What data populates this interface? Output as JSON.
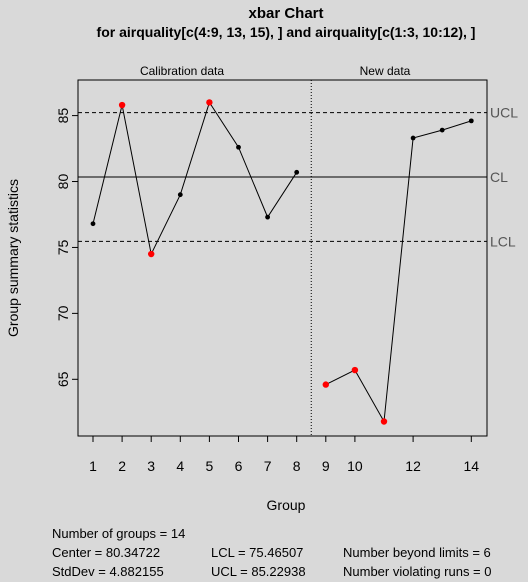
{
  "chart_data": {
    "type": "line",
    "title": "xbar Chart",
    "subtitle": "for airquality[c(4:9, 13, 15), ] and airquality[c(1:3, 10:12), ]",
    "xlabel": "Group",
    "ylabel": "Group summary statistics",
    "ylim": [
      60.7,
      87.7
    ],
    "yticks": [
      65,
      70,
      75,
      80,
      85
    ],
    "xticks": [
      1,
      2,
      3,
      4,
      5,
      6,
      7,
      8,
      9,
      10,
      12,
      14
    ],
    "xticklabels": [
      "1",
      "2",
      "3",
      "4",
      "5",
      "6",
      "7",
      "8",
      "9",
      "10",
      "12",
      "14"
    ],
    "section_labels": [
      "Calibration data",
      "New data"
    ],
    "calibration_groups": 8,
    "series": [
      {
        "x": [
          1,
          2,
          3,
          4,
          5,
          6,
          7,
          8,
          9,
          10,
          11,
          12,
          13,
          14
        ],
        "values": [
          76.8,
          85.8,
          74.5,
          79.0,
          86.0,
          82.6,
          77.3,
          80.7,
          64.6,
          65.7,
          61.8,
          83.3,
          83.9,
          84.6
        ],
        "out_of_control": [
          false,
          true,
          true,
          false,
          true,
          false,
          false,
          false,
          true,
          true,
          true,
          false,
          false,
          false
        ]
      }
    ],
    "limits": {
      "ucl": 85.22938,
      "cl": 80.34722,
      "lcl": 75.46507,
      "ucl_label": "UCL",
      "cl_label": "CL",
      "lcl_label": "LCL"
    },
    "point_color": "#000000",
    "violation_color": "#ff0000"
  },
  "stats": {
    "groups": "Number of groups = 14",
    "center": "Center = 80.34722",
    "stddev": "StdDev = 4.882155",
    "lcl": "LCL = 75.46507",
    "ucl": "UCL = 85.22938",
    "beyond": "Number beyond limits = 6",
    "violating": "Number violating runs = 0"
  }
}
